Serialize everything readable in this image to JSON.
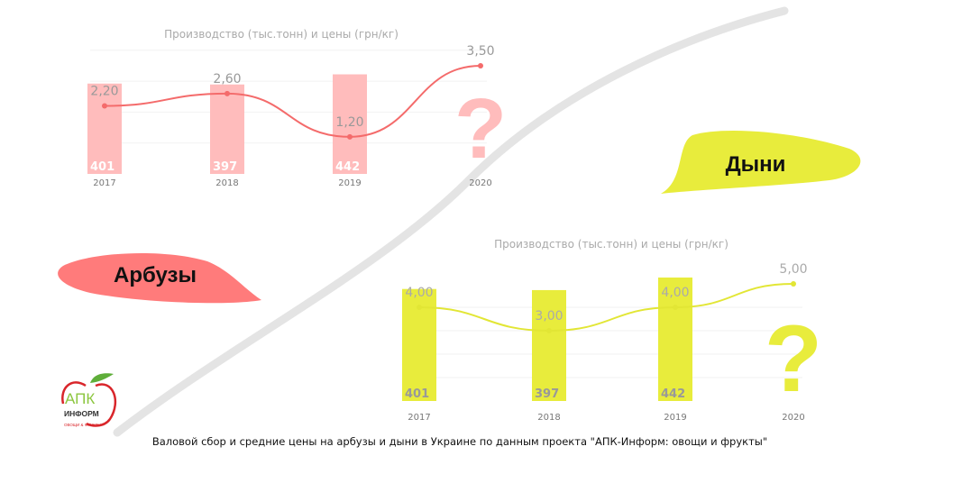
{
  "chart_data": [
    {
      "type": "bar+line",
      "name": "Арбузы",
      "title": "Производство (тыс.тонн)   и  цены (грн/кг)",
      "categories": [
        "2017",
        "2018",
        "2019",
        "2020"
      ],
      "series": [
        {
          "kind": "bar",
          "values": [
            401,
            397,
            442,
            null
          ]
        },
        {
          "kind": "line",
          "values": [
            2.2,
            2.6,
            1.2,
            3.5
          ],
          "labels": [
            "2,20",
            "2,60",
            "1,20",
            "3,50"
          ]
        }
      ],
      "unknown_marker": "?",
      "bar_color": "#ffbcbc",
      "line_color": "#f46b6b",
      "grid": true
    },
    {
      "type": "bar+line",
      "name": "Дыни",
      "title": "Производство (тыс.тонн)   и  цены (грн/кг)",
      "categories": [
        "2017",
        "2018",
        "2019",
        "2020"
      ],
      "series": [
        {
          "kind": "bar",
          "values": [
            401,
            397,
            442,
            null
          ]
        },
        {
          "kind": "line",
          "values": [
            4.0,
            3.0,
            4.0,
            5.0
          ],
          "labels": [
            "4,00",
            "3,00",
            "4,00",
            "5,00"
          ]
        }
      ],
      "unknown_marker": "?",
      "bar_color": "#e8ec3c",
      "line_color": "#e2e635",
      "grid": true
    }
  ],
  "labels": {
    "watermelons": "Арбузы",
    "melons": "Дыни"
  },
  "logo": {
    "name": "АПК",
    "sub": "ИНФОРМ",
    "tagline": "ОВОЩИ & ФРУКТЫ"
  },
  "caption": "Валовой сбор и средние цены на арбузы и дыни в Украине по данным проекта \"АПК-Информ: овощи и фрукты\"",
  "colors": {
    "watermelon": "#ff7b7b",
    "melon": "#e8ec3c",
    "swoosh": "#e4e4e4"
  }
}
